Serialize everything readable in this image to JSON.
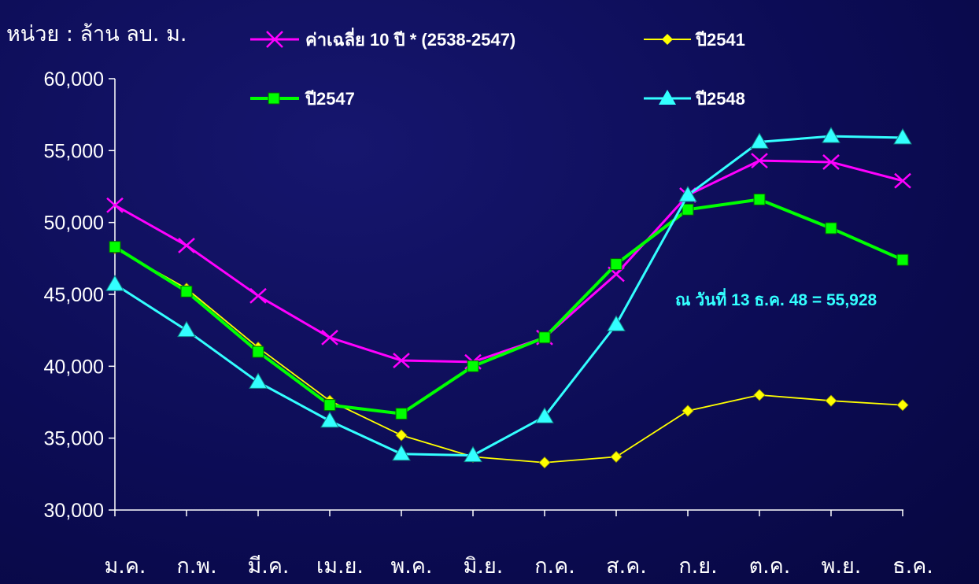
{
  "chart_data": {
    "type": "line",
    "unit_label": "หน่วย : ล้าน ลบ. ม.",
    "categories": [
      "ม.ค.",
      "ก.พ.",
      "มี.ค.",
      "เม.ย.",
      "พ.ค.",
      "มิ.ย.",
      "ก.ค.",
      "ส.ค.",
      "ก.ย.",
      "ต.ค.",
      "พ.ย.",
      "ธ.ค."
    ],
    "y_ticks": [
      "30,000",
      "35,000",
      "40,000",
      "45,000",
      "50,000",
      "55,000",
      "60,000"
    ],
    "ylim": [
      30000,
      60000
    ],
    "y_tick_step": 5000,
    "grid": false,
    "series": [
      {
        "name": "ค่าเฉลี่ย 10 ปี * (2538-2547)",
        "color": "#ff00ff",
        "marker": "x",
        "values": [
          51200,
          48400,
          44900,
          42000,
          40400,
          40300,
          42000,
          46400,
          51900,
          54300,
          54200,
          52900
        ]
      },
      {
        "name": "ปี2541",
        "color": "#ffff00",
        "marker": "diamond",
        "values": [
          48200,
          45400,
          41300,
          37600,
          35200,
          33700,
          33300,
          33700,
          36900,
          38000,
          37600,
          37300
        ]
      },
      {
        "name": "ปี2547",
        "color": "#00ff00",
        "marker": "square",
        "values": [
          48300,
          45200,
          41000,
          37300,
          36700,
          40000,
          42000,
          47100,
          50900,
          51600,
          49600,
          47400
        ]
      },
      {
        "name": "ปี2548",
        "color": "#33ffff",
        "marker": "triangle",
        "values": [
          45700,
          42500,
          38900,
          36200,
          33900,
          33800,
          36500,
          42900,
          51900,
          55600,
          56000,
          55900
        ]
      }
    ],
    "annotation": "ณ วันที่ 13 ธ.ค. 48  =  55,928",
    "legend_position": "top"
  }
}
